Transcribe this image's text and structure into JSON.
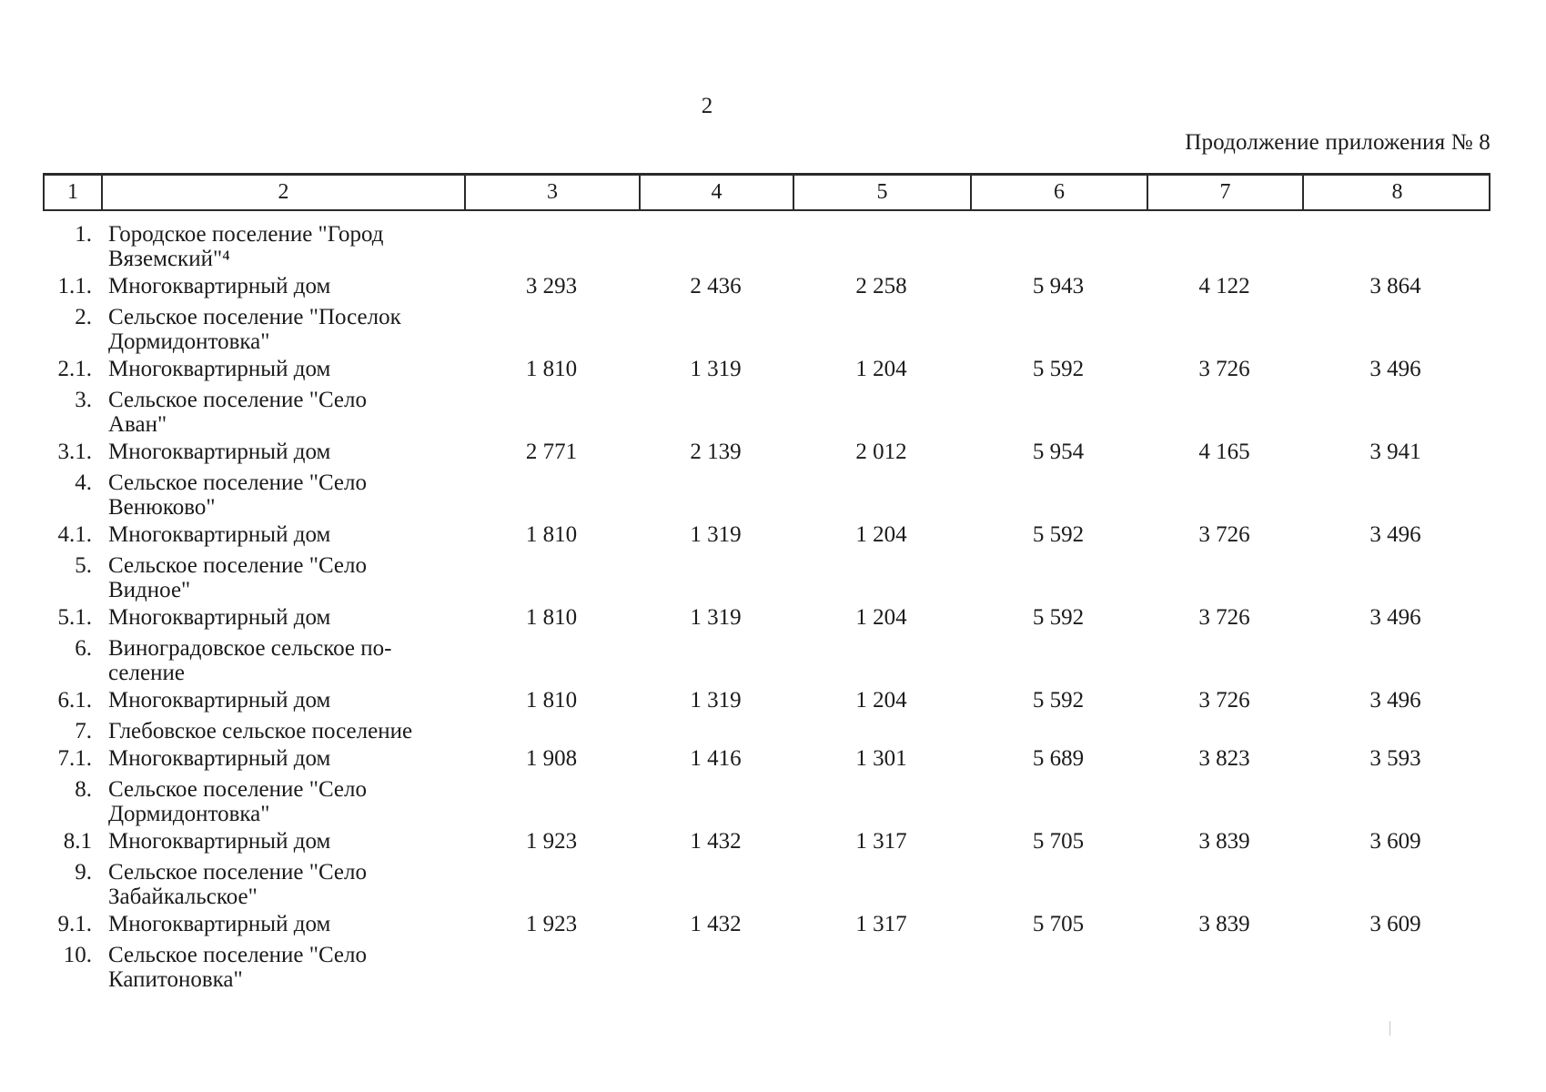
{
  "page": {
    "number": "2",
    "header_right": "Продолжение приложения № 8"
  },
  "table": {
    "column_headers": [
      "1",
      "2",
      "3",
      "4",
      "5",
      "6",
      "7",
      "8"
    ],
    "rows": [
      {
        "num": "1.",
        "name": "Городское поселение \"Город\nВяземский\"⁴",
        "values": []
      },
      {
        "num": "1.1.",
        "name": "Многоквартирный дом",
        "values": [
          "3 293",
          "2 436",
          "2 258",
          "5 943",
          "4 122",
          "3 864"
        ]
      },
      {
        "num": "2.",
        "name": "Сельское поселение \"Поселок\nДормидонтовка\"",
        "values": []
      },
      {
        "num": "2.1.",
        "name": "Многоквартирный дом",
        "values": [
          "1 810",
          "1 319",
          "1 204",
          "5 592",
          "3 726",
          "3 496"
        ]
      },
      {
        "num": "3.",
        "name": "Сельское поселение \"Село\nАван\"",
        "values": []
      },
      {
        "num": "3.1.",
        "name": "Многоквартирный дом",
        "values": [
          "2 771",
          "2 139",
          "2 012",
          "5 954",
          "4 165",
          "3 941"
        ]
      },
      {
        "num": "4.",
        "name": "Сельское поселение \"Село\nВенюково\"",
        "values": []
      },
      {
        "num": "4.1.",
        "name": "Многоквартирный дом",
        "values": [
          "1 810",
          "1 319",
          "1 204",
          "5 592",
          "3 726",
          "3 496"
        ]
      },
      {
        "num": "5.",
        "name": "Сельское поселение \"Село\nВидное\"",
        "values": []
      },
      {
        "num": "5.1.",
        "name": "Многоквартирный дом",
        "values": [
          "1 810",
          "1 319",
          "1 204",
          "5 592",
          "3 726",
          "3 496"
        ]
      },
      {
        "num": "6.",
        "name": "Виноградовское сельское по-\nселение",
        "values": []
      },
      {
        "num": "6.1.",
        "name": "Многоквартирный дом",
        "values": [
          "1 810",
          "1 319",
          "1 204",
          "5 592",
          "3 726",
          "3 496"
        ]
      },
      {
        "num": "7.",
        "name": "Глебовское сельское поселение",
        "values": []
      },
      {
        "num": "7.1.",
        "name": "Многоквартирный дом",
        "values": [
          "1 908",
          "1 416",
          "1 301",
          "5 689",
          "3 823",
          "3 593"
        ]
      },
      {
        "num": "8.",
        "name": "Сельское поселение \"Село\nДормидонтовка\"",
        "values": []
      },
      {
        "num": "8.1",
        "name": "Многоквартирный дом",
        "values": [
          "1 923",
          "1 432",
          "1 317",
          "5 705",
          "3 839",
          "3 609"
        ]
      },
      {
        "num": "9.",
        "name": "Сельское поселение \"Село\nЗабайкальское\"",
        "values": []
      },
      {
        "num": "9.1.",
        "name": "Многоквартирный дом",
        "values": [
          "1 923",
          "1 432",
          "1 317",
          "5 705",
          "3 839",
          "3 609"
        ]
      },
      {
        "num": "10.",
        "name": "Сельское поселение \"Село\nКапитоновка\"",
        "values": []
      }
    ]
  }
}
